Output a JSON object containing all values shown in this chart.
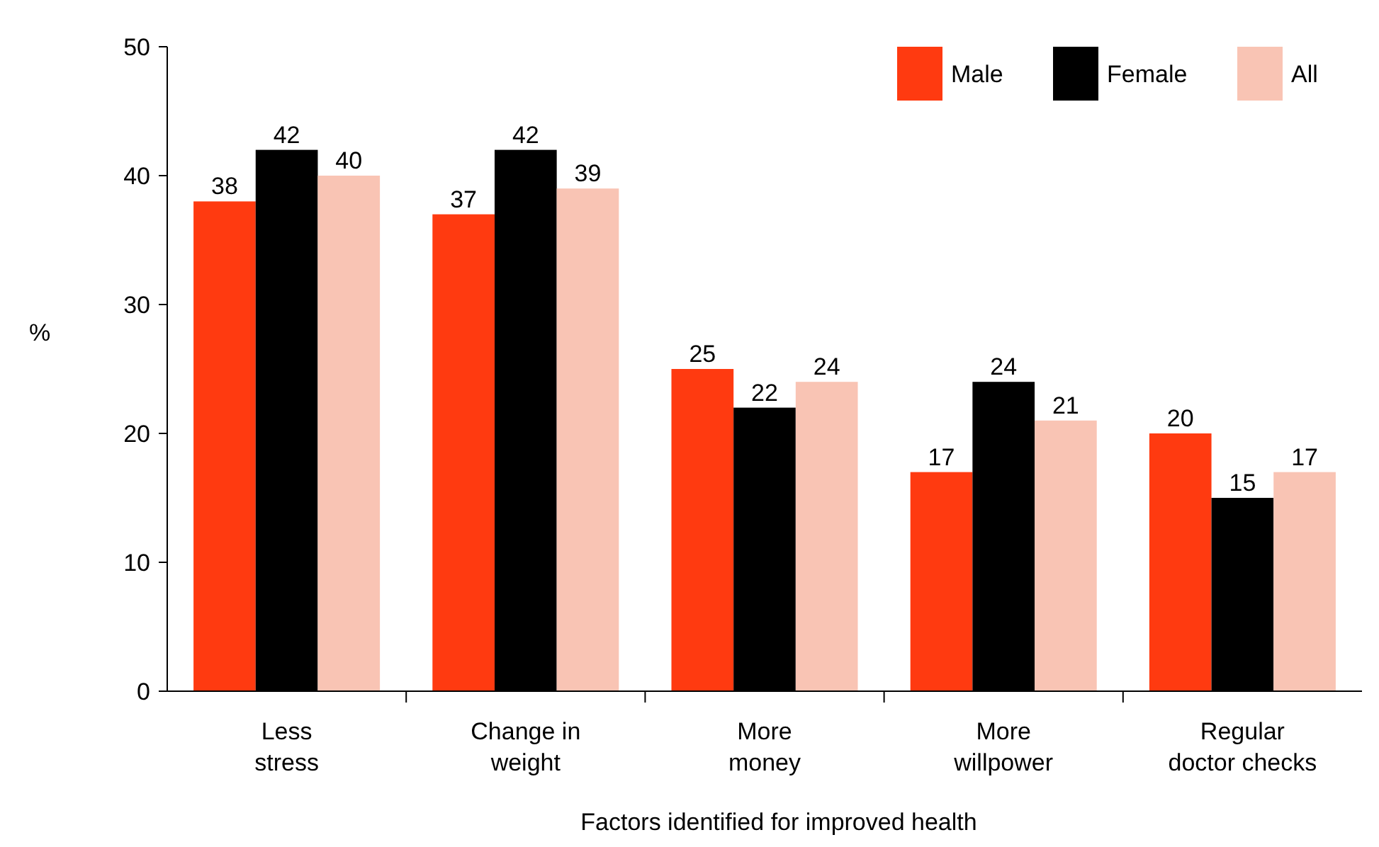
{
  "chart_data": {
    "type": "bar",
    "xlabel": "Factors identified for improved health",
    "ylabel": "%",
    "categories": [
      "Less\nstress",
      "Change in\nweight",
      "More\nmoney",
      "More\nwillpower",
      "Regular\ndoctor checks"
    ],
    "series": [
      {
        "name": "Male",
        "color": "#ff3a10",
        "values": [
          38,
          37,
          25,
          17,
          20
        ]
      },
      {
        "name": "Female",
        "color": "#000000",
        "values": [
          42,
          42,
          22,
          24,
          15
        ]
      },
      {
        "name": "All",
        "color": "#f9c4b4",
        "values": [
          40,
          39,
          24,
          21,
          17
        ]
      }
    ],
    "ylim": [
      0,
      50
    ],
    "yticks": [
      0,
      10,
      20,
      30,
      40,
      50
    ],
    "grid": false,
    "legend": "top right",
    "data_labels": true
  }
}
